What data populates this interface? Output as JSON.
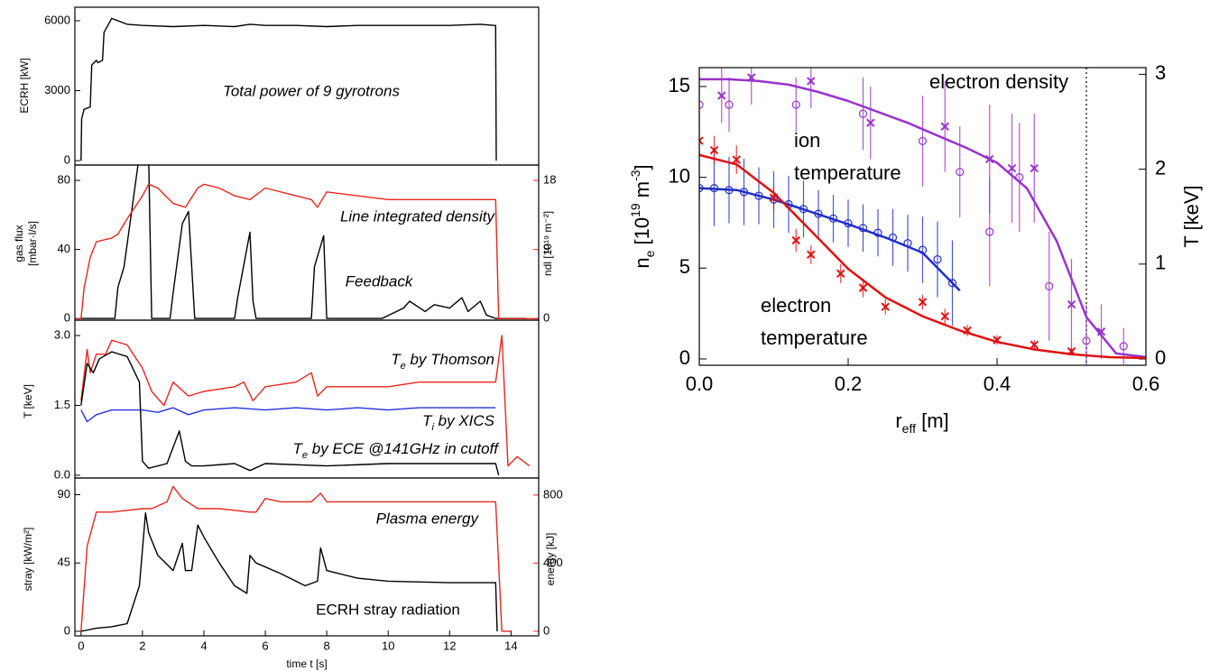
{
  "chart_data": [
    {
      "type": "line",
      "ylabel": "ECRH [kW]",
      "xlim": [
        -0.2,
        14.9
      ],
      "ylim": [
        -190,
        6580
      ],
      "yticks": [
        0,
        3000,
        6000
      ],
      "annotations": [
        {
          "text": "Total power of 9 gyrotrons",
          "color": "#000000"
        }
      ],
      "series": [
        {
          "color": "#000000",
          "x": [
            0,
            0.02,
            0.1,
            0.3,
            0.35,
            0.5,
            0.55,
            0.7,
            0.75,
            1.0,
            1.5,
            2,
            3,
            4,
            5,
            5.5,
            6,
            7,
            8,
            9,
            10,
            11,
            12,
            13,
            13.45,
            13.5,
            13.52
          ],
          "values": [
            0,
            1800,
            2200,
            2300,
            4100,
            4300,
            4200,
            4300,
            5500,
            6100,
            5850,
            5800,
            5750,
            5800,
            5750,
            5850,
            5800,
            5800,
            5750,
            5800,
            5800,
            5800,
            5800,
            5850,
            5800,
            5800,
            0
          ]
        }
      ]
    },
    {
      "type": "line",
      "ylabel": [
        "gas flux",
        "[mbar·l/s]"
      ],
      "y2label": "ndl [10¹⁹ m⁻²]",
      "y2color": "#e8261f",
      "xlim": [
        -0.2,
        14.9
      ],
      "ylim": [
        -1,
        88.9
      ],
      "yticks": [
        0,
        40,
        80
      ],
      "y2lim": [
        -0.2,
        20
      ],
      "y2ticks": [
        0,
        9,
        18
      ],
      "annotations": [
        {
          "text": "Line integrated density",
          "color": "#e8261f"
        },
        {
          "text": "Feedback",
          "color": "#000000"
        }
      ],
      "series": [
        {
          "color": "#000000",
          "x": [
            0,
            1.1,
            1.2,
            1.4,
            1.9,
            2.2,
            2.3,
            2.9,
            3.0,
            3.3,
            3.5,
            3.7,
            5.0,
            5.1,
            5.5,
            5.6,
            5.7,
            7.5,
            7.6,
            7.9,
            8.0,
            9.8,
            10.5,
            10.7,
            11.2,
            11.5,
            12,
            12.4,
            12.6,
            13.0,
            13.2,
            13.5,
            14.5
          ],
          "values": [
            0,
            0,
            18,
            30,
            95,
            95,
            0,
            0,
            15,
            55,
            62,
            0,
            0,
            12,
            50,
            10,
            0,
            0,
            30,
            48,
            0,
            0,
            6,
            10,
            4,
            8,
            6,
            12,
            4,
            10,
            2,
            0,
            0
          ]
        },
        {
          "color": "#e8261f",
          "axis": "y2",
          "x": [
            -0.2,
            0,
            0.1,
            0.3,
            0.5,
            1.0,
            1.2,
            1.5,
            2.0,
            2.2,
            2.5,
            3.0,
            3.4,
            3.8,
            4.0,
            4.5,
            5.0,
            5.5,
            6.0,
            7.0,
            7.5,
            7.7,
            8.0,
            9,
            10,
            11,
            12,
            13,
            13.5,
            13.6,
            14.9
          ],
          "values": [
            0,
            0,
            4,
            8,
            10,
            10.5,
            11,
            13,
            16,
            17.5,
            17,
            15,
            14.5,
            17,
            17.5,
            17,
            16,
            15.5,
            17,
            16,
            15.5,
            14.5,
            16.5,
            16,
            15.5,
            15.5,
            15.5,
            15.5,
            15.5,
            0,
            0
          ]
        }
      ]
    },
    {
      "type": "line",
      "ylabel": "T [keV]",
      "xlim": [
        -0.2,
        14.9
      ],
      "ylim": [
        -0.06,
        3.33
      ],
      "yticks": [
        {
          "value": 0,
          "label": "0.0"
        },
        1.5,
        {
          "value": 3,
          "label": "3.0"
        }
      ],
      "annotations": [
        {
          "parts": [
            {
              "text": "T",
              "pos": "base"
            },
            {
              "text": "e",
              "pos": "sub"
            },
            {
              "text": " by Thomson",
              "pos": "base"
            }
          ],
          "color": "#e8261f"
        },
        {
          "parts": [
            {
              "text": "T",
              "pos": "base"
            },
            {
              "text": "i",
              "pos": "sub"
            },
            {
              "text": " by XICS",
              "pos": "base"
            }
          ],
          "color": "#2233dd"
        },
        {
          "parts": [
            {
              "text": "T",
              "pos": "base"
            },
            {
              "text": "e",
              "pos": "sub"
            },
            {
              "text": " by ECE @141GHz in cutoff",
              "pos": "base"
            }
          ],
          "color": "#000000"
        }
      ],
      "series": [
        {
          "color": "#e8261f",
          "x": [
            0,
            0.2,
            0.3,
            0.5,
            0.8,
            1.0,
            1.5,
            2.0,
            2.3,
            2.7,
            3.0,
            3.5,
            4,
            5,
            5.3,
            5.6,
            6,
            7,
            7.5,
            7.7,
            8,
            9,
            10,
            11,
            12,
            13,
            13.5,
            13.7,
            13.9,
            14.2,
            14.6
          ],
          "values": [
            1.6,
            2.7,
            2.2,
            2.6,
            2.6,
            2.9,
            2.8,
            2.3,
            1.8,
            1.5,
            2.0,
            1.7,
            1.8,
            1.9,
            2.0,
            1.6,
            1.9,
            2.0,
            2.2,
            1.7,
            1.9,
            1.9,
            1.9,
            2.0,
            2.0,
            2.0,
            2.0,
            3.0,
            0.2,
            0.4,
            0.2
          ]
        },
        {
          "color": "#2233dd",
          "x": [
            0,
            0.2,
            0.5,
            1,
            2,
            2.5,
            3,
            3.5,
            4,
            5,
            6,
            7,
            8,
            9,
            10,
            11,
            12,
            13,
            13.5
          ],
          "values": [
            1.4,
            1.15,
            1.3,
            1.4,
            1.4,
            1.35,
            1.45,
            1.3,
            1.4,
            1.45,
            1.4,
            1.45,
            1.4,
            1.45,
            1.4,
            1.45,
            1.45,
            1.45,
            1.45
          ]
        },
        {
          "color": "#000000",
          "x": [
            0,
            0.2,
            0.4,
            0.6,
            1.0,
            1.5,
            1.9,
            2.0,
            2.2,
            2.8,
            3.2,
            3.4,
            3.6,
            4,
            5,
            5.5,
            6,
            8,
            10,
            12,
            13.5,
            13.6
          ],
          "values": [
            1.5,
            2.4,
            2.2,
            2.5,
            2.65,
            2.55,
            2.0,
            0.3,
            0.15,
            0.25,
            0.95,
            0.3,
            0.2,
            0.2,
            0.25,
            0.1,
            0.25,
            0.2,
            0.25,
            0.25,
            0.25,
            0
          ]
        }
      ]
    },
    {
      "type": "line",
      "ylabel": "stray [kW/m²]",
      "y2label": "energy [kJ]",
      "y2color": "#e8261f",
      "xlabel": "time t [s]",
      "xlim": [
        -0.2,
        14.9
      ],
      "xticks": [
        0,
        2,
        4,
        6,
        8,
        10,
        12,
        14
      ],
      "ylim": [
        -3,
        101
      ],
      "yticks": [
        0,
        45,
        90
      ],
      "y2lim": [
        -27,
        900
      ],
      "y2ticks": [
        0,
        400,
        800
      ],
      "annotations": [
        {
          "text": "Plasma energy",
          "color": "#e8261f"
        },
        {
          "text": "ECRH stray radiation",
          "color": "#000000"
        }
      ],
      "series": [
        {
          "color": "#e8261f",
          "axis": "y2",
          "x": [
            0,
            0.2,
            0.5,
            1.0,
            2.0,
            2.3,
            2.8,
            3.0,
            3.3,
            3.8,
            4.5,
            5.5,
            5.7,
            6,
            6.5,
            7.5,
            7.8,
            8,
            10,
            12,
            13.5,
            13.7,
            14
          ],
          "values": [
            0,
            500,
            700,
            700,
            720,
            720,
            760,
            850,
            780,
            720,
            720,
            700,
            700,
            780,
            760,
            760,
            810,
            760,
            760,
            760,
            760,
            0,
            0
          ]
        },
        {
          "color": "#000000",
          "x": [
            0,
            0.5,
            1,
            1.5,
            1.9,
            2.1,
            2.2,
            2.5,
            3.0,
            3.3,
            3.4,
            3.6,
            3.8,
            4.0,
            4.5,
            5.0,
            5.4,
            5.5,
            5.7,
            6.5,
            7.3,
            7.7,
            7.8,
            8,
            9,
            10,
            12,
            13.5,
            13.55
          ],
          "values": [
            0,
            2,
            3,
            5,
            30,
            78,
            65,
            50,
            40,
            58,
            40,
            40,
            70,
            62,
            45,
            30,
            25,
            50,
            45,
            38,
            30,
            33,
            55,
            40,
            35,
            33,
            32,
            32,
            0
          ]
        }
      ]
    },
    {
      "type": "line",
      "ylabel": [
        {
          "text": "n",
          "pos": "base"
        },
        {
          "text": "e",
          "pos": "sub"
        },
        {
          "text": " [10",
          "pos": "base"
        },
        {
          "text": "19",
          "pos": "sup"
        },
        {
          "text": " m",
          "pos": "base"
        },
        {
          "text": "-3",
          "pos": "sup"
        },
        {
          "text": "]",
          "pos": "base"
        }
      ],
      "y2label": "T [keV]",
      "xlabel": [
        {
          "text": "r",
          "pos": "base"
        },
        {
          "text": "eff",
          "pos": "sub"
        },
        {
          "text": " [m]",
          "pos": "base"
        }
      ],
      "xlim": [
        0,
        0.6
      ],
      "xticks": [
        {
          "value": 0,
          "label": "0.0"
        },
        0.2,
        0.4,
        0.6
      ],
      "ylim": [
        -0.35,
        16.04
      ],
      "yticks": [
        0,
        5,
        10,
        15
      ],
      "y2lim": [
        -0.066,
        3.07
      ],
      "y2ticks": [
        0,
        1,
        2,
        3
      ],
      "vline": 0.52,
      "annotations": [
        {
          "text": "electron density",
          "color": "#9933cc"
        },
        {
          "lines": [
            "ion",
            "temperature"
          ],
          "color": "#1f2ec8"
        },
        {
          "lines": [
            "electron",
            "temperature"
          ],
          "color": "#e01010"
        }
      ],
      "series": [
        {
          "color": "#9933cc",
          "marker": "mixed",
          "x": [
            0,
            0.04,
            0.08,
            0.12,
            0.16,
            0.2,
            0.24,
            0.28,
            0.32,
            0.36,
            0.4,
            0.44,
            0.48,
            0.52,
            0.56,
            0.6
          ],
          "values": [
            15.4,
            15.4,
            15.3,
            15.1,
            14.7,
            14.2,
            13.6,
            13.0,
            12.3,
            11.6,
            10.8,
            9.4,
            6.5,
            2.3,
            0.3,
            0.1
          ],
          "points": {
            "x": [
              0,
              0.03,
              0.04,
              0.07,
              0.13,
              0.15,
              0.22,
              0.23,
              0.3,
              0.33,
              0.35,
              0.39,
              0.39,
              0.42,
              0.43,
              0.45,
              0.47,
              0.5,
              0.52,
              0.54,
              0.57
            ],
            "values": [
              14,
              14.5,
              14,
              15.5,
              14,
              15.3,
              13.5,
              13,
              12,
              12.8,
              10.3,
              11,
              7,
              10.5,
              10,
              10.5,
              4,
              3,
              1,
              1.5,
              0.7
            ],
            "errors": [
              1.5,
              1.5,
              1.5,
              1.5,
              1.5,
              1.5,
              2,
              2,
              2.5,
              2.5,
              2.5,
              3,
              3,
              3,
              3,
              3,
              3,
              2.5,
              2,
              1.5,
              1
            ]
          }
        },
        {
          "color": "#1f2ec8",
          "axis": "y2",
          "marker": "o",
          "x": [
            0,
            0.05,
            0.1,
            0.15,
            0.2,
            0.25,
            0.3,
            0.35
          ],
          "values": [
            1.8,
            1.78,
            1.68,
            1.55,
            1.42,
            1.28,
            1.12,
            0.72
          ],
          "points": {
            "x": [
              0,
              0.02,
              0.04,
              0.06,
              0.08,
              0.1,
              0.12,
              0.14,
              0.16,
              0.18,
              0.2,
              0.22,
              0.24,
              0.26,
              0.28,
              0.3,
              0.32,
              0.34
            ],
            "values": [
              1.8,
              1.8,
              1.78,
              1.76,
              1.72,
              1.68,
              1.63,
              1.58,
              1.53,
              1.48,
              1.43,
              1.38,
              1.33,
              1.28,
              1.22,
              1.15,
              1.05,
              0.8
            ],
            "errors": [
              0.4,
              0.4,
              0.35,
              0.35,
              0.3,
              0.3,
              0.3,
              0.3,
              0.25,
              0.25,
              0.25,
              0.25,
              0.25,
              0.3,
              0.3,
              0.35,
              0.4,
              0.45
            ]
          }
        },
        {
          "color": "#e01010",
          "axis": "y2",
          "marker": "x",
          "x": [
            0,
            0.05,
            0.1,
            0.15,
            0.2,
            0.25,
            0.3,
            0.35,
            0.4,
            0.45,
            0.5,
            0.55,
            0.6
          ],
          "values": [
            2.15,
            2.05,
            1.75,
            1.35,
            0.95,
            0.65,
            0.45,
            0.3,
            0.18,
            0.1,
            0.05,
            0.02,
            0.01
          ],
          "points": {
            "x": [
              0,
              0.02,
              0.05,
              0.1,
              0.13,
              0.15,
              0.19,
              0.22,
              0.25,
              0.3,
              0.33,
              0.36,
              0.4,
              0.45,
              0.5
            ],
            "values": [
              2.3,
              2.2,
              2.1,
              1.7,
              1.25,
              1.1,
              0.9,
              0.75,
              0.55,
              0.6,
              0.45,
              0.3,
              0.2,
              0.15,
              0.08
            ],
            "errors": [
              0.15,
              0.15,
              0.15,
              0.12,
              0.12,
              0.1,
              0.1,
              0.1,
              0.08,
              0.08,
              0.08,
              0.06,
              0.05,
              0.05,
              0.04
            ]
          }
        }
      ]
    }
  ]
}
